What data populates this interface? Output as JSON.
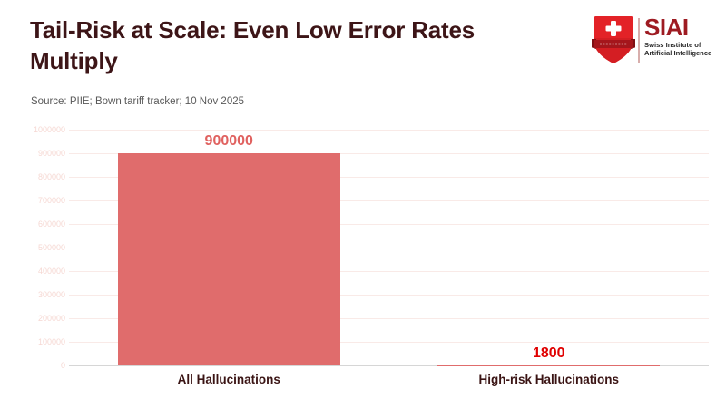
{
  "header": {
    "title": "Tail-Risk at Scale: Even Low Error Rates Multiply",
    "source": "Source: PIIE; Bown tariff tracker; 10 Nov 2025"
  },
  "logo": {
    "name": "SIAI",
    "subtitle_line1": "Swiss Institute of",
    "subtitle_line2": "Artificial Intelligence"
  },
  "chart_data": {
    "type": "bar",
    "categories": [
      "All Hallucinations",
      "High-risk Hallucinations"
    ],
    "values": [
      900000,
      1800
    ],
    "value_labels": [
      "900000",
      "1800"
    ],
    "title": "Tail-Risk at Scale: Even Low Error Rates Multiply",
    "xlabel": "",
    "ylabel": "",
    "ylim": [
      0,
      1000000
    ],
    "yticks": [
      0,
      100000,
      200000,
      300000,
      400000,
      500000,
      600000,
      700000,
      800000,
      900000,
      1000000
    ],
    "grid": true,
    "legend": false,
    "bar_color": "#e06c6c",
    "value_label_colors": [
      "#e0615f",
      "#e00000"
    ]
  },
  "colors": {
    "background": "#ffffff",
    "title": "#3d1517",
    "source": "#595959",
    "gridline": "#f9eae7",
    "baseline": "#d6d6d6",
    "ytick_label": "#f6d8d3",
    "category_label": "#3a1414",
    "logo_name": "#9e1b22",
    "shield_red": "#e32227",
    "shield_dark_red": "#a5161c"
  }
}
